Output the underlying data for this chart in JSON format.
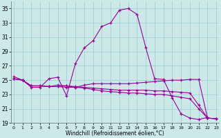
{
  "bg_color": "#cce8e8",
  "line_color": "#990099",
  "grid_color": "#99cccc",
  "xlabel": "Windchill (Refroidissement éolien,°C)",
  "ylim": [
    19,
    36
  ],
  "xlim": [
    -0.3,
    23.3
  ],
  "yticks": [
    19,
    21,
    23,
    25,
    27,
    29,
    31,
    33,
    35
  ],
  "xticks": [
    0,
    1,
    2,
    3,
    4,
    5,
    6,
    7,
    8,
    9,
    10,
    11,
    12,
    13,
    14,
    15,
    16,
    17,
    18,
    19,
    20,
    21,
    22,
    23
  ],
  "series": [
    {
      "x": [
        0,
        1,
        2,
        3,
        4,
        5,
        6,
        7,
        8,
        9,
        10,
        11,
        12,
        13,
        14,
        15,
        16,
        17,
        18,
        19,
        20,
        21,
        22
      ],
      "y": [
        25.5,
        25.0,
        24.0,
        24.0,
        25.2,
        25.4,
        22.8,
        27.3,
        29.5,
        30.5,
        32.5,
        33.0,
        34.8,
        35.0,
        34.2,
        29.5,
        25.2,
        25.1,
        22.5,
        20.3,
        19.7,
        19.5,
        19.8
      ]
    },
    {
      "x": [
        0,
        1,
        2,
        3,
        4,
        5,
        6,
        7,
        8,
        9,
        10,
        11,
        12,
        13,
        14,
        15,
        16,
        17,
        18,
        19,
        20,
        21,
        22,
        23
      ],
      "y": [
        25.2,
        25.0,
        24.2,
        24.2,
        24.1,
        24.1,
        24.0,
        24.0,
        24.3,
        24.5,
        24.5,
        24.5,
        24.5,
        24.5,
        24.6,
        24.7,
        24.8,
        24.9,
        25.0,
        25.0,
        25.1,
        25.1,
        19.7,
        19.6
      ]
    },
    {
      "x": [
        0,
        1,
        2,
        3,
        4,
        5,
        6,
        7,
        8,
        9,
        10,
        11,
        12,
        13,
        14,
        15,
        16,
        17,
        18,
        19,
        20,
        21,
        22,
        23
      ],
      "y": [
        25.2,
        25.0,
        24.2,
        24.2,
        24.1,
        24.1,
        24.2,
        24.0,
        23.9,
        23.7,
        23.5,
        23.4,
        23.3,
        23.2,
        23.2,
        23.1,
        23.0,
        23.0,
        22.8,
        22.6,
        22.4,
        21.0,
        19.7,
        19.6
      ]
    },
    {
      "x": [
        0,
        1,
        2,
        3,
        4,
        5,
        6,
        7,
        8,
        9,
        10,
        11,
        12,
        13,
        14,
        15,
        16,
        17,
        18,
        19,
        20,
        21,
        22,
        23
      ],
      "y": [
        25.2,
        25.0,
        24.2,
        24.2,
        24.1,
        24.3,
        24.2,
        24.1,
        24.0,
        23.9,
        23.8,
        23.7,
        23.6,
        23.6,
        23.6,
        23.6,
        23.5,
        23.5,
        23.4,
        23.3,
        23.2,
        21.5,
        19.7,
        19.6
      ]
    }
  ]
}
